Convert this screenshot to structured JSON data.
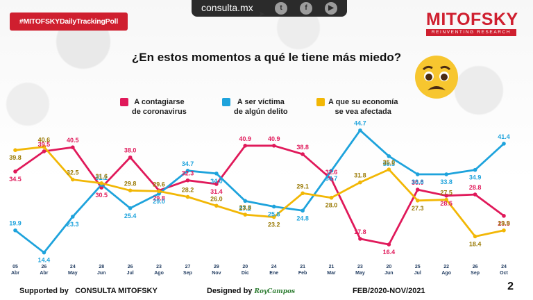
{
  "header": {
    "hashtag": "#MITOFSKYDailyTrackingPoll",
    "site_url": "consulta.mx",
    "social_icons": [
      "twitter-icon",
      "facebook-icon",
      "youtube-icon"
    ],
    "brand": "MITOFSKY",
    "brand_tagline": "REINVENTING RESEARCH"
  },
  "chart_data": {
    "type": "line",
    "title": "¿En estos momentos a qué le tiene más miedo?",
    "categories": [
      [
        "05",
        "Abr"
      ],
      [
        "26",
        "Abr"
      ],
      [
        "24",
        "May"
      ],
      [
        "28",
        "Jun"
      ],
      [
        "26",
        "Jul"
      ],
      [
        "23",
        "Ago"
      ],
      [
        "27",
        "Sep"
      ],
      [
        "29",
        "Nov"
      ],
      [
        "20",
        "Dic"
      ],
      [
        "24",
        "Ene"
      ],
      [
        "21",
        "Feb"
      ],
      [
        "21",
        "Mar"
      ],
      [
        "23",
        "May"
      ],
      [
        "20",
        "Jun"
      ],
      [
        "25",
        "Jul"
      ],
      [
        "22",
        "Ago"
      ],
      [
        "26",
        "Sep"
      ],
      [
        "24",
        "Oct"
      ]
    ],
    "ylim": [
      14,
      45
    ],
    "grid": false,
    "series": [
      {
        "name": "A contagiarse de coronavirus",
        "color": "#e0195a",
        "values": [
          34.5,
          39.5,
          40.5,
          30.5,
          38.0,
          29.8,
          32.3,
          31.4,
          40.9,
          40.9,
          38.8,
          32.6,
          17.8,
          16.4,
          30.0,
          28.5,
          28.8,
          23.5
        ]
      },
      {
        "name": "A ser víctima de algún delito",
        "color": "#1ea3dc",
        "values": [
          19.9,
          14.4,
          23.3,
          31.2,
          25.4,
          29.0,
          34.7,
          34.0,
          27.2,
          25.8,
          24.8,
          34.7,
          44.7,
          38.3,
          33.8,
          33.8,
          34.9,
          41.4
        ]
      },
      {
        "name": "A que su economía se vea afectada",
        "color": "#f2b705",
        "values": [
          39.8,
          40.6,
          32.5,
          31.6,
          29.8,
          29.6,
          28.2,
          26.0,
          23.8,
          23.2,
          29.1,
          28.0,
          31.8,
          35.0,
          27.3,
          27.5,
          18.4,
          19.9
        ]
      }
    ],
    "legend": [
      {
        "line1": "A contagiarse",
        "line2": "de coronavirus"
      },
      {
        "line1": "A ser víctima",
        "line2": "de algún delito"
      },
      {
        "line1": "A que su economía",
        "line2": "se vea afectada"
      }
    ],
    "legend_position": "top"
  },
  "footer": {
    "supported_by": "Supported by",
    "supporter": "CONSULTA   MITOFSKY",
    "designed_by": "Designed by",
    "designer": "RoyCampos",
    "period": "FEB/2020-NOV/2021",
    "page_number": "2"
  }
}
